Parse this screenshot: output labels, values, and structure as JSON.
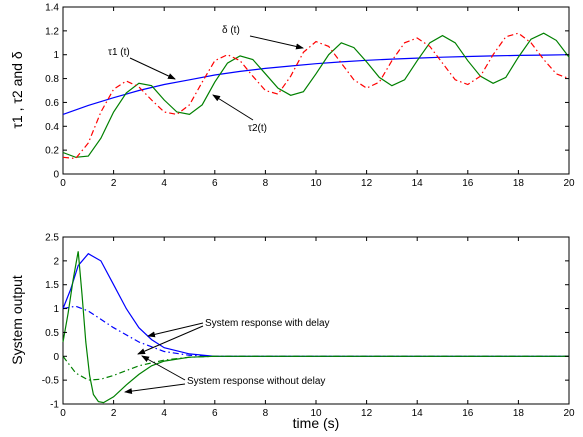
{
  "chart_data": [
    {
      "type": "line",
      "ylabel": "τ1 , τ2 and δ",
      "xlim": [
        0,
        20
      ],
      "ylim": [
        0,
        1.4
      ],
      "xticks": [
        "0",
        "2",
        "4",
        "6",
        "8",
        "10",
        "12",
        "14",
        "16",
        "18",
        "20"
      ],
      "yticks": [
        "0",
        "0.2",
        "0.4",
        "0.6",
        "0.8",
        "1",
        "1.2",
        "1.4"
      ],
      "grid": false,
      "series": [
        {
          "name": "τ1 (t)",
          "color": "#0000ff",
          "style": "solid",
          "x": [
            0,
            1,
            2,
            3,
            4,
            5,
            6,
            7,
            8,
            9,
            10,
            11,
            12,
            13,
            14,
            15,
            16,
            17,
            18,
            19,
            20
          ],
          "y": [
            0.5,
            0.575,
            0.64,
            0.7,
            0.75,
            0.79,
            0.83,
            0.86,
            0.885,
            0.905,
            0.925,
            0.94,
            0.953,
            0.963,
            0.972,
            0.979,
            0.985,
            0.99,
            0.994,
            0.997,
            1.0
          ]
        },
        {
          "name": "τ2(t)",
          "color": "#008000",
          "style": "solid",
          "x": [
            0,
            0.5,
            1,
            1.5,
            2,
            2.5,
            3,
            3.5,
            4,
            4.5,
            5,
            5.5,
            6,
            6.5,
            7,
            7.5,
            8,
            8.5,
            9,
            9.5,
            10,
            10.5,
            11,
            11.5,
            12,
            12.5,
            13,
            13.5,
            14,
            14.5,
            15,
            15.5,
            16,
            16.5,
            17,
            17.5,
            18,
            18.5,
            19,
            19.5,
            20
          ],
          "y": [
            0.18,
            0.14,
            0.15,
            0.3,
            0.52,
            0.68,
            0.76,
            0.74,
            0.62,
            0.52,
            0.5,
            0.58,
            0.77,
            0.93,
            0.99,
            0.96,
            0.84,
            0.72,
            0.66,
            0.69,
            0.84,
            1.0,
            1.1,
            1.06,
            0.94,
            0.81,
            0.74,
            0.79,
            0.95,
            1.1,
            1.16,
            1.1,
            0.95,
            0.82,
            0.76,
            0.81,
            0.98,
            1.13,
            1.18,
            1.12,
            0.98
          ]
        },
        {
          "name": "δ (t)",
          "color": "#ff0000",
          "style": "dashdot",
          "x": [
            0,
            0.5,
            1,
            1.5,
            2,
            2.5,
            3,
            3.5,
            4,
            4.5,
            5,
            5.5,
            6,
            6.5,
            7,
            7.5,
            8,
            8.5,
            9,
            9.5,
            10,
            10.5,
            11,
            11.5,
            12,
            12.5,
            13,
            13.5,
            14,
            14.5,
            15,
            15.5,
            16,
            16.5,
            17,
            17.5,
            18,
            18.5,
            19,
            19.5,
            20
          ],
          "y": [
            0.14,
            0.13,
            0.26,
            0.52,
            0.71,
            0.78,
            0.73,
            0.62,
            0.52,
            0.5,
            0.58,
            0.77,
            0.95,
            1.0,
            0.95,
            0.82,
            0.7,
            0.67,
            0.82,
            1.02,
            1.11,
            1.07,
            0.93,
            0.79,
            0.72,
            0.77,
            0.95,
            1.1,
            1.14,
            1.07,
            0.93,
            0.79,
            0.75,
            0.82,
            1.0,
            1.15,
            1.18,
            1.1,
            0.96,
            0.84,
            0.8
          ]
        }
      ],
      "annotations": [
        "δ (t)",
        "τ1 (t)",
        "τ2(t)"
      ]
    },
    {
      "type": "line",
      "xlabel": "time (s)",
      "ylabel": "System output",
      "xlim": [
        0,
        20
      ],
      "ylim": [
        -1,
        2.5
      ],
      "xticks": [
        "0",
        "2",
        "4",
        "6",
        "8",
        "10",
        "12",
        "14",
        "16",
        "18",
        "20"
      ],
      "yticks": [
        "-1",
        "-0.5",
        "0",
        "0.5",
        "1",
        "1.5",
        "2",
        "2.5"
      ],
      "grid": false,
      "series": [
        {
          "color": "#0000ff",
          "style": "solid",
          "x": [
            0,
            0.3,
            0.6,
            1,
            1.5,
            2,
            2.5,
            3,
            3.5,
            4,
            5,
            6,
            7,
            8,
            20
          ],
          "y": [
            1.0,
            1.4,
            1.9,
            2.15,
            2.0,
            1.5,
            1.0,
            0.6,
            0.35,
            0.18,
            0.05,
            0.0,
            0.0,
            0.0,
            0.0
          ]
        },
        {
          "color": "#0000ff",
          "style": "dashdot",
          "x": [
            0,
            0.5,
            1,
            2,
            3,
            4,
            5,
            6,
            20
          ],
          "y": [
            1.0,
            1.05,
            0.95,
            0.6,
            0.3,
            0.1,
            0.02,
            0.0,
            0.0
          ]
        },
        {
          "color": "#008000",
          "style": "solid",
          "x": [
            0,
            0.2,
            0.4,
            0.6,
            0.75,
            0.9,
            1.05,
            1.2,
            1.4,
            1.6,
            2,
            2.5,
            3,
            3.5,
            4,
            5,
            6,
            7,
            8,
            20
          ],
          "y": [
            0.3,
            0.9,
            1.6,
            2.2,
            1.3,
            0.3,
            -0.4,
            -0.8,
            -0.95,
            -0.97,
            -0.85,
            -0.6,
            -0.38,
            -0.2,
            -0.1,
            -0.02,
            0.0,
            0.0,
            0.0,
            0.0
          ]
        },
        {
          "color": "#008000",
          "style": "dashdot",
          "x": [
            0,
            0.5,
            1,
            1.5,
            2,
            3,
            4,
            5,
            6,
            20
          ],
          "y": [
            0.0,
            -0.35,
            -0.5,
            -0.48,
            -0.4,
            -0.2,
            -0.08,
            -0.02,
            0.0,
            0.0
          ]
        }
      ],
      "annotations": [
        "System response with delay",
        "System response without delay"
      ]
    }
  ]
}
